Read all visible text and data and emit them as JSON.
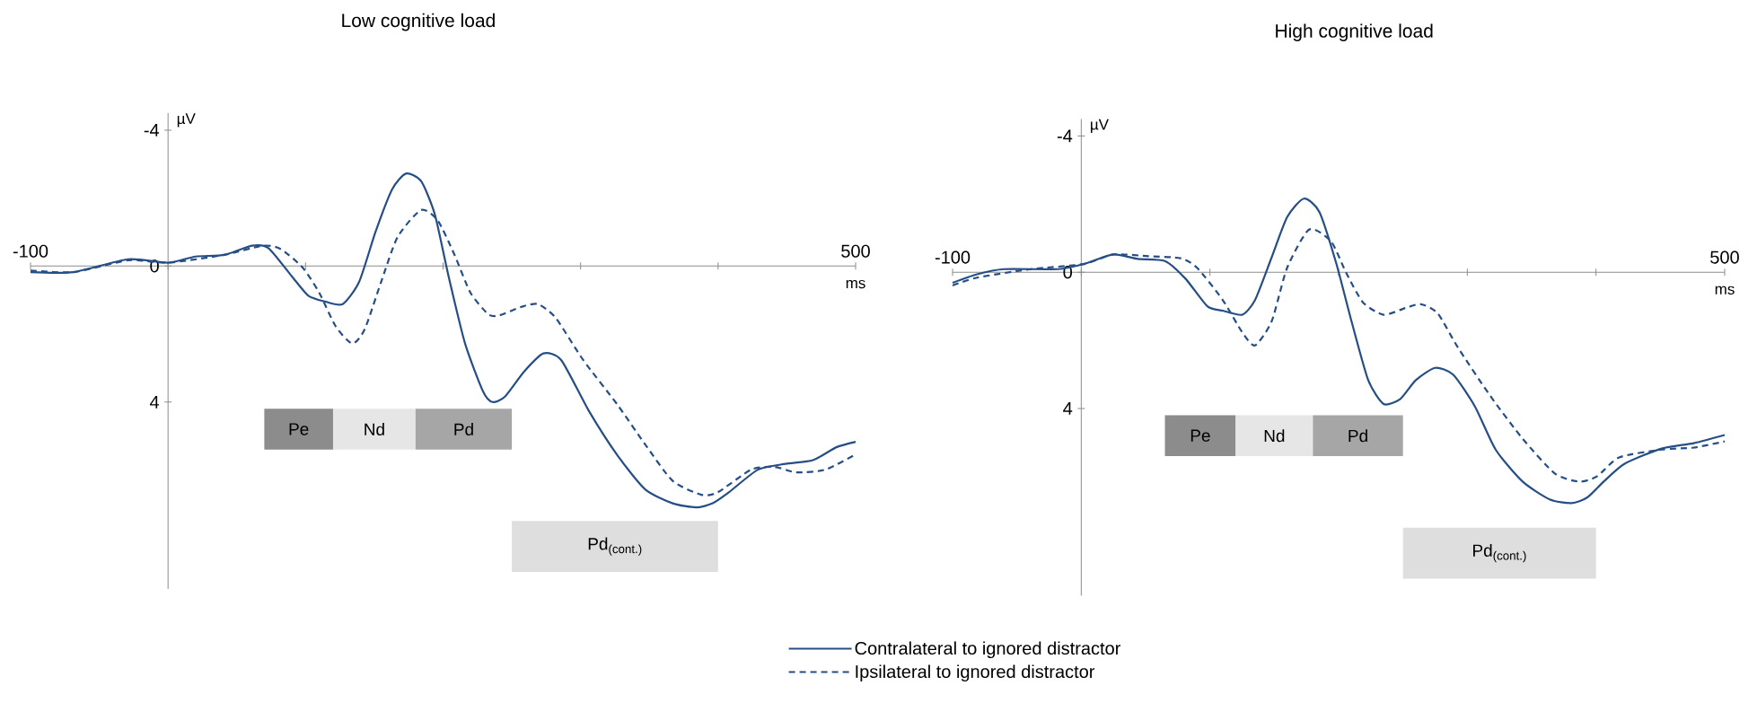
{
  "chart_data": [
    {
      "type": "line",
      "title": "Low cognitive load",
      "xlabel": "ms",
      "ylabel": "µV",
      "xlim": [
        -100,
        500
      ],
      "ylim": [
        9.5,
        -4.5
      ],
      "xticks": [
        -100,
        {
          "value": 0,
          "label": null
        },
        {
          "value": 100,
          "label": null
        },
        {
          "value": 200,
          "label": null
        },
        {
          "value": 300,
          "label": null
        },
        {
          "value": 400,
          "label": null
        },
        500
      ],
      "yticks": [
        -4,
        0,
        4
      ],
      "series": [
        {
          "color": "#264e86",
          "line_style": "solid",
          "x": [
            -100,
            -69,
            -29,
            0,
            20,
            41,
            61,
            73,
            90,
            102,
            114,
            127,
            139,
            151,
            163,
            173,
            184,
            194,
            204,
            216,
            229,
            236,
            245,
            259,
            273,
            286,
            306,
            327,
            347,
            367,
            384,
            396,
            408,
            429,
            449,
            469,
            486,
            500
          ],
          "values": [
            0.18,
            0.18,
            -0.2,
            -0.1,
            -0.28,
            -0.33,
            -0.6,
            -0.53,
            0.3,
            0.87,
            1.04,
            1.12,
            0.46,
            -1.02,
            -2.26,
            -2.72,
            -2.5,
            -1.52,
            0.3,
            2.28,
            3.68,
            4.0,
            3.84,
            3.1,
            2.57,
            2.77,
            4.26,
            5.58,
            6.57,
            6.98,
            7.1,
            6.98,
            6.65,
            5.99,
            5.82,
            5.71,
            5.33,
            5.17
          ]
        },
        {
          "color": "#264e86",
          "line_style": "dashed",
          "x": [
            -100,
            -69,
            -29,
            0,
            41,
            69,
            82,
            98,
            110,
            122,
            134,
            143,
            155,
            167,
            184,
            196,
            208,
            220,
            233,
            241,
            257,
            269,
            282,
            302,
            327,
            347,
            367,
            388,
            400,
            424,
            441,
            457,
            478,
            500
          ],
          "values": [
            0.13,
            0.18,
            -0.17,
            -0.1,
            -0.33,
            -0.6,
            -0.5,
            0.05,
            0.79,
            1.78,
            2.28,
            1.86,
            0.46,
            -0.86,
            -1.65,
            -1.35,
            -0.36,
            0.79,
            1.42,
            1.45,
            1.2,
            1.12,
            1.53,
            2.77,
            4.09,
            5.25,
            6.32,
            6.73,
            6.65,
            5.99,
            5.91,
            6.07,
            5.99,
            5.54
          ]
        }
      ],
      "bands": [
        {
          "axis": "x",
          "from": 70,
          "to": 120,
          "label": "Pe",
          "color": "#8c8c8c"
        },
        {
          "axis": "x",
          "from": 120,
          "to": 180,
          "label": "Nd",
          "color": "#e6e6e6"
        },
        {
          "axis": "x",
          "from": 180,
          "to": 250,
          "label": "Pd",
          "color": "#a6a6a6"
        },
        {
          "axis": "x",
          "from": 250,
          "to": 400,
          "label": "Pd$_{(cont.)}$",
          "color": "#dedede"
        }
      ]
    },
    {
      "type": "line",
      "title": "High cognitive load",
      "xlabel": "ms",
      "ylabel": "µV",
      "xlim": [
        -100,
        500
      ],
      "ylim": [
        9.5,
        -4.5
      ],
      "xticks": [
        -100,
        {
          "value": 0,
          "label": null
        },
        {
          "value": 100,
          "label": null
        },
        {
          "value": 200,
          "label": null
        },
        {
          "value": 300,
          "label": null
        },
        {
          "value": 400,
          "label": null
        },
        500
      ],
      "yticks": [
        -4,
        0,
        4
      ],
      "legend": "bottom",
      "series": [
        {
          "name": "Contralateral to ignored distractor",
          "color": "#264e86",
          "line_style": "solid",
          "x": [
            -100,
            -81,
            -60,
            -18,
            2,
            25,
            44,
            65,
            81,
            98,
            110,
            125,
            135,
            148,
            160,
            173,
            185,
            198,
            210,
            223,
            235,
            248,
            260,
            275,
            289,
            306,
            322,
            343,
            364,
            381,
            393,
            406,
            422,
            451,
            476,
            500
          ],
          "values": [
            0.31,
            0.06,
            -0.09,
            -0.09,
            -0.24,
            -0.52,
            -0.39,
            -0.33,
            0.19,
            1.0,
            1.13,
            1.25,
            0.82,
            -0.44,
            -1.62,
            -2.16,
            -1.77,
            -0.28,
            1.44,
            3.17,
            3.87,
            3.72,
            3.17,
            2.81,
            3.01,
            3.95,
            5.21,
            6.15,
            6.67,
            6.78,
            6.62,
            6.15,
            5.63,
            5.18,
            5.02,
            4.78
          ]
        },
        {
          "name": "Ipsilateral to ignored distractor",
          "color": "#264e86",
          "line_style": "dashed",
          "x": [
            -100,
            -81,
            -39,
            2,
            25,
            52,
            77,
            90,
            110,
            125,
            135,
            148,
            160,
            177,
            194,
            206,
            219,
            235,
            252,
            264,
            277,
            293,
            318,
            343,
            368,
            387,
            401,
            418,
            451,
            476,
            500
          ],
          "values": [
            0.39,
            0.16,
            -0.09,
            -0.24,
            -0.52,
            -0.47,
            -0.41,
            -0.13,
            0.82,
            1.76,
            2.15,
            1.44,
            -0.13,
            -1.25,
            -0.91,
            0.03,
            0.89,
            1.25,
            1.05,
            0.94,
            1.21,
            2.23,
            3.64,
            4.89,
            5.91,
            6.15,
            5.99,
            5.44,
            5.21,
            5.15,
            4.97
          ]
        }
      ],
      "bands": [
        {
          "axis": "x",
          "from": 65,
          "to": 120,
          "label": "Pe",
          "color": "#8c8c8c"
        },
        {
          "axis": "x",
          "from": 120,
          "to": 180,
          "label": "Nd",
          "color": "#e6e6e6"
        },
        {
          "axis": "x",
          "from": 180,
          "to": 250,
          "label": "Pd",
          "color": "#a6a6a6"
        },
        {
          "axis": "x",
          "from": 250,
          "to": 400,
          "label": "Pd$_{(cont.)}$",
          "color": "#dedede"
        }
      ]
    }
  ]
}
